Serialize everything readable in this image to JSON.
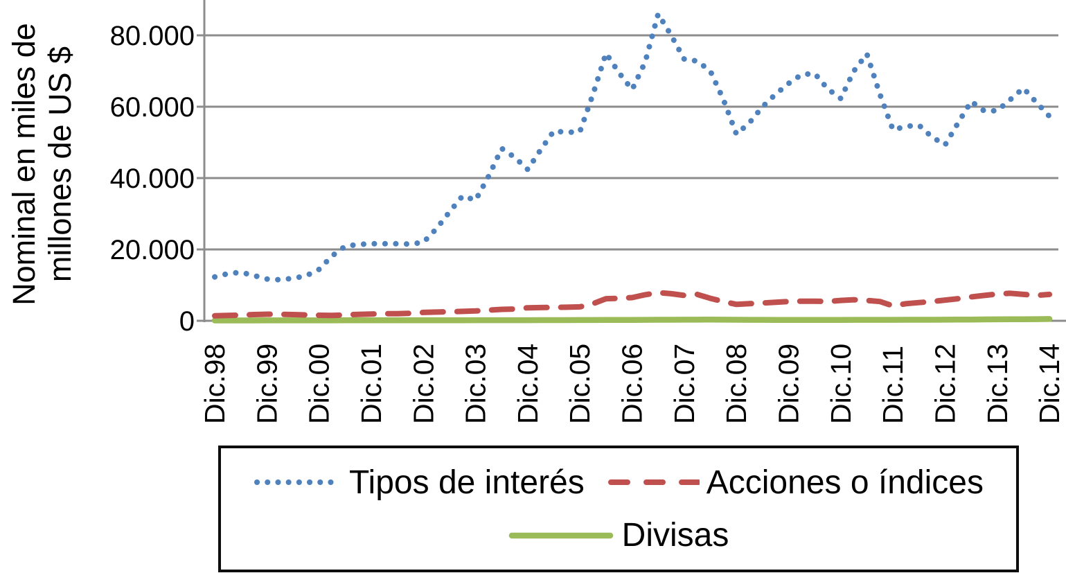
{
  "figure": {
    "background": "#ffffff",
    "text_color": "#000000",
    "border_color": "#0d0d0d"
  },
  "y_axis": {
    "title_line1": "Nominal en miles de",
    "title_line2": "millones de US $"
  },
  "chart_data": {
    "type": "line",
    "title": "",
    "xlabel": "",
    "ylabel": "Nominal en miles de millones de US $",
    "grid": "horizontal",
    "grid_color": "#8c8c8c",
    "axis_color": "#8c8c8c",
    "ylim": [
      0,
      90000
    ],
    "legend_position": "bottom-boxed",
    "data_frequency": "quarterly (Dic.98 - Dic.14)",
    "x_labels": [
      "Dic.98",
      "Dic.99",
      "Dic.00",
      "Dic.01",
      "Dic.02",
      "Dic.03",
      "Dic.04",
      "Dic.05",
      "Dic.06",
      "Dic.07",
      "Dic.08",
      "Dic.09",
      "Dic.10",
      "Dic.11",
      "Dic.12",
      "Dic.13",
      "Dic.14"
    ],
    "y_ticks": [
      {
        "label": "0",
        "value": 0
      },
      {
        "label": "20.000",
        "value": 20000
      },
      {
        "label": "40.000",
        "value": 40000
      },
      {
        "label": "60.000",
        "value": 60000
      },
      {
        "label": "80.000",
        "value": 80000
      }
    ],
    "series": [
      {
        "name": "Tipos de interés",
        "color": "#4f81bd",
        "style": "dotted",
        "width": 8,
        "dash": "0.1 15.4",
        "values": [
          12300,
          13200,
          13600,
          12700,
          11700,
          11500,
          11900,
          12600,
          14400,
          18200,
          20900,
          21400,
          21600,
          21600,
          21600,
          21500,
          22000,
          25800,
          30500,
          35000,
          33800,
          40500,
          48300,
          45800,
          42400,
          48000,
          53200,
          52800,
          53000,
          63500,
          75000,
          69500,
          64800,
          72500,
          86000,
          80000,
          73300,
          72800,
          70000,
          62000,
          52300,
          55500,
          60000,
          63500,
          66500,
          69000,
          69300,
          65000,
          62300,
          70000,
          74800,
          63500,
          53500,
          54500,
          54800,
          51500,
          49300,
          55500,
          61500,
          58800,
          58900,
          62000,
          65200,
          61200,
          57300
        ]
      },
      {
        "name": "Acciones o índices",
        "color": "#c0504d",
        "style": "dashed",
        "width": 8,
        "dash": "30 20",
        "values": [
          1400,
          1500,
          1600,
          1750,
          1850,
          1800,
          1750,
          1650,
          1550,
          1500,
          1650,
          1800,
          1900,
          2000,
          2000,
          2100,
          2350,
          2450,
          2550,
          2650,
          2750,
          3000,
          3200,
          3300,
          3650,
          3700,
          3750,
          3800,
          3900,
          4800,
          6200,
          6300,
          6500,
          7300,
          7900,
          7600,
          7100,
          7400,
          6300,
          5400,
          4600,
          4800,
          5000,
          5200,
          5400,
          5500,
          5500,
          5400,
          5700,
          5900,
          5700,
          5400,
          4200,
          4800,
          5100,
          5400,
          5800,
          6200,
          6700,
          7100,
          7500,
          7700,
          7400,
          7100,
          7400
        ]
      },
      {
        "name": "Divisas",
        "color": "#9bbb59",
        "style": "solid",
        "width": 8.5,
        "dash": "",
        "values": [
          100,
          100,
          100,
          100,
          120,
          120,
          120,
          120,
          120,
          120,
          130,
          130,
          140,
          140,
          150,
          150,
          150,
          150,
          160,
          160,
          170,
          170,
          180,
          180,
          180,
          190,
          200,
          200,
          210,
          220,
          240,
          250,
          260,
          280,
          300,
          300,
          320,
          320,
          350,
          320,
          300,
          280,
          270,
          260,
          260,
          250,
          250,
          250,
          260,
          270,
          280,
          280,
          280,
          290,
          300,
          300,
          310,
          330,
          350,
          380,
          400,
          420,
          450,
          470,
          500
        ]
      }
    ]
  }
}
